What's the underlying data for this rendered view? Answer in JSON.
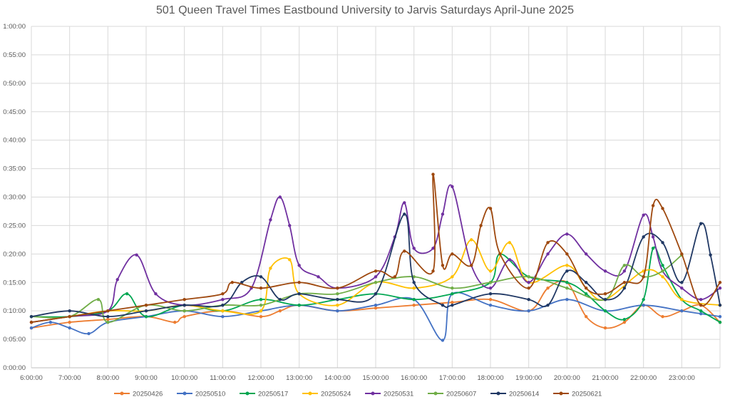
{
  "chart_data": {
    "type": "line",
    "title": "501 Queen Travel Times Eastbound University to Jarvis Saturdays April-June 2025",
    "xlabel": "",
    "ylabel": "",
    "x_ticks": [
      "6:00:00",
      "7:00:00",
      "8:00:00",
      "9:00:00",
      "10:00:00",
      "11:00:00",
      "12:00:00",
      "13:00:00",
      "14:00:00",
      "15:00:00",
      "16:00:00",
      "17:00:00",
      "18:00:00",
      "19:00:00",
      "20:00:00",
      "21:00:00",
      "22:00:00",
      "23:00:00"
    ],
    "y_ticks": [
      "0:00:00",
      "0:05:00",
      "0:10:00",
      "0:15:00",
      "0:20:00",
      "0:25:00",
      "0:30:00",
      "0:35:00",
      "0:40:00",
      "0:45:00",
      "0:50:00",
      "0:55:00",
      "1:00:00"
    ],
    "xlim": [
      "6:00:00",
      "24:00:00"
    ],
    "ylim": [
      "0:00:00",
      "1:00:00"
    ],
    "grid": "both",
    "legend_position": "bottom",
    "series": [
      {
        "name": "20250426",
        "color": "#ED7D31",
        "points": [
          [
            "6:00",
            "0:07:00"
          ],
          [
            "7:00",
            "0:08:00"
          ],
          [
            "8:00",
            "0:08:30"
          ],
          [
            "9:00",
            "0:09:00"
          ],
          [
            "9:45",
            "0:08:00"
          ],
          [
            "10:00",
            "0:09:00"
          ],
          [
            "11:00",
            "0:10:00"
          ],
          [
            "12:00",
            "0:09:00"
          ],
          [
            "12:30",
            "0:10:00"
          ],
          [
            "13:00",
            "0:11:00"
          ],
          [
            "14:00",
            "0:10:00"
          ],
          [
            "15:00",
            "0:10:30"
          ],
          [
            "16:00",
            "0:11:00"
          ],
          [
            "17:00",
            "0:11:30"
          ],
          [
            "18:00",
            "0:12:00"
          ],
          [
            "19:00",
            "0:10:00"
          ],
          [
            "19:30",
            "0:14:00"
          ],
          [
            "20:00",
            "0:15:00"
          ],
          [
            "20:30",
            "0:09:00"
          ],
          [
            "21:00",
            "0:07:00"
          ],
          [
            "21:30",
            "0:08:00"
          ],
          [
            "22:00",
            "0:11:00"
          ],
          [
            "22:30",
            "0:09:00"
          ],
          [
            "23:00",
            "0:10:00"
          ],
          [
            "23:30",
            "0:11:00"
          ],
          [
            "24:00",
            "0:08:00"
          ]
        ]
      },
      {
        "name": "20250510",
        "color": "#4472C4",
        "points": [
          [
            "6:00",
            "0:07:00"
          ],
          [
            "6:30",
            "0:08:00"
          ],
          [
            "7:00",
            "0:07:00"
          ],
          [
            "7:30",
            "0:06:00"
          ],
          [
            "8:00",
            "0:08:00"
          ],
          [
            "9:00",
            "0:09:00"
          ],
          [
            "10:00",
            "0:10:00"
          ],
          [
            "11:00",
            "0:09:00"
          ],
          [
            "12:00",
            "0:10:00"
          ],
          [
            "13:00",
            "0:11:00"
          ],
          [
            "14:00",
            "0:10:00"
          ],
          [
            "15:00",
            "0:11:00"
          ],
          [
            "16:00",
            "0:12:00"
          ],
          [
            "16:45",
            "0:04:50"
          ],
          [
            "17:00",
            "0:13:00"
          ],
          [
            "18:00",
            "0:11:00"
          ],
          [
            "19:00",
            "0:10:00"
          ],
          [
            "20:00",
            "0:12:00"
          ],
          [
            "21:00",
            "0:10:00"
          ],
          [
            "22:00",
            "0:11:00"
          ],
          [
            "23:00",
            "0:10:00"
          ],
          [
            "23:30",
            "0:09:30"
          ],
          [
            "24:00",
            "0:09:00"
          ]
        ]
      },
      {
        "name": "20250517",
        "color": "#00A651",
        "points": [
          [
            "6:00",
            "0:09:00"
          ],
          [
            "7:00",
            "0:09:00"
          ],
          [
            "8:00",
            "0:10:00"
          ],
          [
            "8:30",
            "0:13:00"
          ],
          [
            "9:00",
            "0:09:00"
          ],
          [
            "10:00",
            "0:11:00"
          ],
          [
            "11:00",
            "0:10:00"
          ],
          [
            "12:00",
            "0:12:00"
          ],
          [
            "13:00",
            "0:11:00"
          ],
          [
            "14:00",
            "0:12:00"
          ],
          [
            "15:00",
            "0:13:00"
          ],
          [
            "16:00",
            "0:12:00"
          ],
          [
            "17:00",
            "0:13:00"
          ],
          [
            "18:00",
            "0:15:00"
          ],
          [
            "18:15",
            "0:20:00"
          ],
          [
            "19:00",
            "0:16:00"
          ],
          [
            "20:00",
            "0:15:00"
          ],
          [
            "20:30",
            "0:13:00"
          ],
          [
            "21:00",
            "0:10:00"
          ],
          [
            "21:30",
            "0:08:30"
          ],
          [
            "22:00",
            "0:12:00"
          ],
          [
            "22:15",
            "0:21:00"
          ],
          [
            "22:30",
            "0:18:00"
          ],
          [
            "23:00",
            "0:12:00"
          ],
          [
            "23:30",
            "0:10:00"
          ],
          [
            "24:00",
            "0:08:00"
          ]
        ]
      },
      {
        "name": "20250524",
        "color": "#FFC000",
        "points": [
          [
            "6:00",
            "0:08:00"
          ],
          [
            "7:00",
            "0:09:00"
          ],
          [
            "8:00",
            "0:10:00"
          ],
          [
            "9:00",
            "0:10:00"
          ],
          [
            "10:00",
            "0:11:00"
          ],
          [
            "11:00",
            "0:10:00"
          ],
          [
            "12:00",
            "0:10:00"
          ],
          [
            "12:15",
            "0:17:30"
          ],
          [
            "12:45",
            "0:19:00"
          ],
          [
            "13:00",
            "0:13:00"
          ],
          [
            "14:00",
            "0:11:00"
          ],
          [
            "15:00",
            "0:15:00"
          ],
          [
            "16:00",
            "0:14:00"
          ],
          [
            "17:00",
            "0:16:00"
          ],
          [
            "17:30",
            "0:22:30"
          ],
          [
            "18:00",
            "0:17:00"
          ],
          [
            "18:30",
            "0:22:00"
          ],
          [
            "19:00",
            "0:15:00"
          ],
          [
            "20:00",
            "0:18:00"
          ],
          [
            "20:30",
            "0:14:00"
          ],
          [
            "21:00",
            "0:12:00"
          ],
          [
            "22:00",
            "0:17:00"
          ],
          [
            "22:30",
            "0:16:00"
          ],
          [
            "23:00",
            "0:12:00"
          ],
          [
            "24:00",
            "0:11:00"
          ]
        ]
      },
      {
        "name": "20250531",
        "color": "#7030A0",
        "points": [
          [
            "6:00",
            "0:08:00"
          ],
          [
            "7:00",
            "0:09:00"
          ],
          [
            "8:00",
            "0:10:00"
          ],
          [
            "8:15",
            "0:15:30"
          ],
          [
            "8:45",
            "0:19:50"
          ],
          [
            "9:15",
            "0:13:00"
          ],
          [
            "10:00",
            "0:11:00"
          ],
          [
            "11:00",
            "0:12:00"
          ],
          [
            "11:45",
            "0:14:00"
          ],
          [
            "12:15",
            "0:26:00"
          ],
          [
            "12:30",
            "0:30:00"
          ],
          [
            "12:45",
            "0:25:00"
          ],
          [
            "13:00",
            "0:18:00"
          ],
          [
            "13:30",
            "0:16:00"
          ],
          [
            "14:00",
            "0:14:00"
          ],
          [
            "15:00",
            "0:16:00"
          ],
          [
            "15:30",
            "0:23:00"
          ],
          [
            "15:45",
            "0:29:00"
          ],
          [
            "16:00",
            "0:21:00"
          ],
          [
            "16:30",
            "0:21:00"
          ],
          [
            "16:45",
            "0:27:00"
          ],
          [
            "17:00",
            "0:31:50"
          ],
          [
            "17:30",
            "0:18:00"
          ],
          [
            "18:00",
            "0:14:00"
          ],
          [
            "18:30",
            "0:19:00"
          ],
          [
            "19:00",
            "0:15:00"
          ],
          [
            "19:30",
            "0:20:00"
          ],
          [
            "20:00",
            "0:23:30"
          ],
          [
            "20:30",
            "0:20:00"
          ],
          [
            "21:00",
            "0:17:00"
          ],
          [
            "21:30",
            "0:17:00"
          ],
          [
            "22:00",
            "0:26:50"
          ],
          [
            "22:15",
            "0:23:00"
          ],
          [
            "22:30",
            "0:17:00"
          ],
          [
            "23:00",
            "0:14:00"
          ],
          [
            "23:30",
            "0:12:00"
          ],
          [
            "24:00",
            "0:14:00"
          ]
        ]
      },
      {
        "name": "20250607",
        "color": "#70AD47",
        "points": [
          [
            "6:00",
            "0:09:00"
          ],
          [
            "7:00",
            "0:09:00"
          ],
          [
            "7:45",
            "0:12:00"
          ],
          [
            "8:00",
            "0:08:00"
          ],
          [
            "9:00",
            "0:11:00"
          ],
          [
            "10:00",
            "0:10:00"
          ],
          [
            "11:00",
            "0:11:00"
          ],
          [
            "12:00",
            "0:11:00"
          ],
          [
            "13:00",
            "0:13:00"
          ],
          [
            "14:00",
            "0:13:00"
          ],
          [
            "15:00",
            "0:15:00"
          ],
          [
            "16:00",
            "0:16:00"
          ],
          [
            "17:00",
            "0:14:00"
          ],
          [
            "18:00",
            "0:15:00"
          ],
          [
            "19:00",
            "0:16:00"
          ],
          [
            "20:00",
            "0:14:00"
          ],
          [
            "21:00",
            "0:12:00"
          ],
          [
            "21:30",
            "0:18:00"
          ],
          [
            "22:00",
            "0:16:00"
          ],
          [
            "22:30",
            "0:17:00"
          ],
          [
            "23:00",
            "0:19:50"
          ]
        ]
      },
      {
        "name": "20250614",
        "color": "#203864",
        "points": [
          [
            "6:00",
            "0:09:00"
          ],
          [
            "7:00",
            "0:10:00"
          ],
          [
            "8:00",
            "0:09:00"
          ],
          [
            "9:00",
            "0:10:00"
          ],
          [
            "10:00",
            "0:11:00"
          ],
          [
            "11:00",
            "0:11:00"
          ],
          [
            "11:30",
            "0:15:00"
          ],
          [
            "12:00",
            "0:16:00"
          ],
          [
            "12:30",
            "0:12:00"
          ],
          [
            "13:00",
            "0:13:00"
          ],
          [
            "14:00",
            "0:12:00"
          ],
          [
            "15:00",
            "0:13:00"
          ],
          [
            "15:45",
            "0:27:00"
          ],
          [
            "16:00",
            "0:15:00"
          ],
          [
            "16:45",
            "0:11:00"
          ],
          [
            "17:00",
            "0:11:00"
          ],
          [
            "18:00",
            "0:13:00"
          ],
          [
            "19:00",
            "0:12:00"
          ],
          [
            "19:30",
            "0:11:00"
          ],
          [
            "20:00",
            "0:17:00"
          ],
          [
            "20:30",
            "0:15:00"
          ],
          [
            "21:00",
            "0:12:00"
          ],
          [
            "21:30",
            "0:14:00"
          ],
          [
            "22:00",
            "0:23:00"
          ],
          [
            "22:30",
            "0:22:00"
          ],
          [
            "23:00",
            "0:15:00"
          ],
          [
            "23:30",
            "0:25:20"
          ],
          [
            "23:45",
            "0:19:50"
          ],
          [
            "24:00",
            "0:11:00"
          ]
        ]
      },
      {
        "name": "20250621",
        "color": "#9E480E",
        "points": [
          [
            "6:00",
            "0:08:00"
          ],
          [
            "7:00",
            "0:09:00"
          ],
          [
            "8:00",
            "0:10:00"
          ],
          [
            "9:00",
            "0:11:00"
          ],
          [
            "10:00",
            "0:12:00"
          ],
          [
            "11:00",
            "0:13:00"
          ],
          [
            "11:15",
            "0:15:00"
          ],
          [
            "12:00",
            "0:14:00"
          ],
          [
            "13:00",
            "0:15:00"
          ],
          [
            "14:00",
            "0:14:00"
          ],
          [
            "15:00",
            "0:17:00"
          ],
          [
            "15:30",
            "0:16:00"
          ],
          [
            "15:45",
            "0:20:30"
          ],
          [
            "16:30",
            "0:17:00"
          ],
          [
            "16:30",
            "0:34:00"
          ],
          [
            "16:45",
            "0:18:00"
          ],
          [
            "17:00",
            "0:20:00"
          ],
          [
            "17:30",
            "0:18:00"
          ],
          [
            "17:45",
            "0:25:00"
          ],
          [
            "18:00",
            "0:28:00"
          ],
          [
            "18:15",
            "0:20:00"
          ],
          [
            "19:00",
            "0:14:00"
          ],
          [
            "19:30",
            "0:22:00"
          ],
          [
            "20:00",
            "0:20:00"
          ],
          [
            "20:30",
            "0:14:00"
          ],
          [
            "21:00",
            "0:13:00"
          ],
          [
            "21:30",
            "0:15:00"
          ],
          [
            "22:00",
            "0:16:00"
          ],
          [
            "22:15",
            "0:28:30"
          ],
          [
            "22:30",
            "0:28:00"
          ],
          [
            "23:00",
            "0:20:00"
          ],
          [
            "23:30",
            "0:11:00"
          ],
          [
            "24:00",
            "0:15:00"
          ]
        ]
      }
    ]
  }
}
